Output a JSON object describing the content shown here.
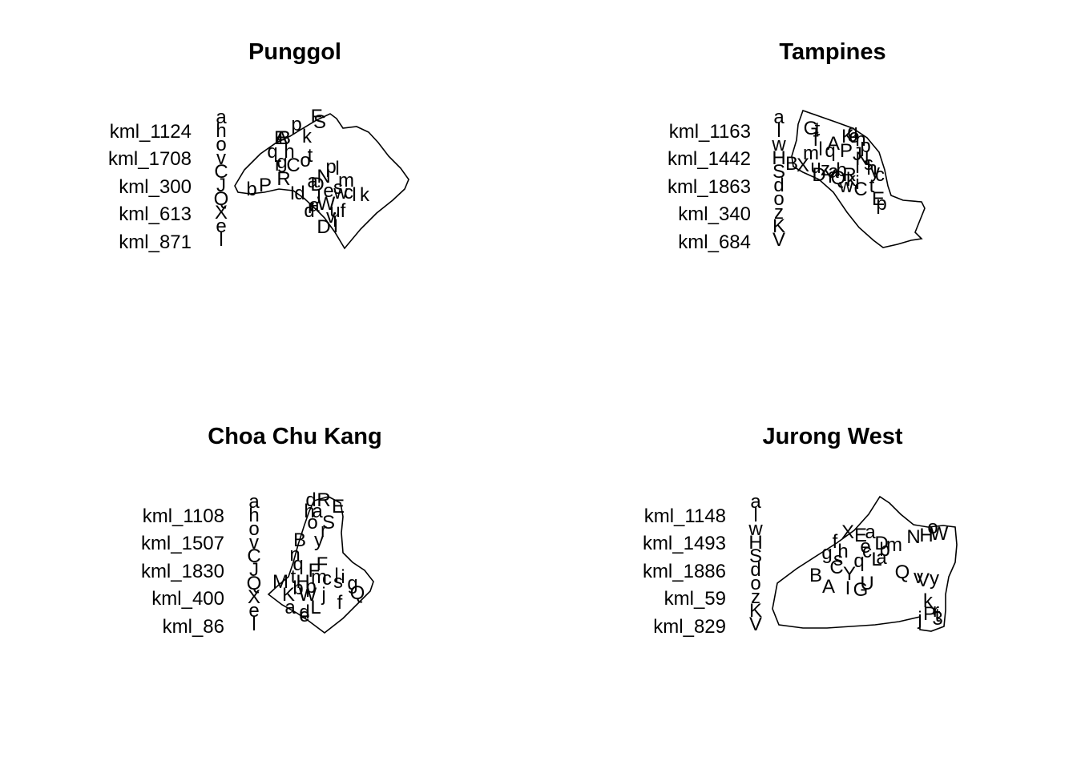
{
  "panels": [
    {
      "title": "Punggol",
      "legend_keys": [
        "kml_1124",
        "kml_1708",
        "kml_300",
        "kml_613",
        "kml_871"
      ],
      "legend_symbols": [
        "a",
        "h",
        "o",
        "v",
        "C",
        "J",
        "Q",
        "X",
        "e",
        "l"
      ],
      "point_labels": [
        "F",
        "S",
        "p",
        "k",
        "A",
        "B",
        "E",
        "q",
        "h",
        "t",
        "g",
        "r",
        "C",
        "o",
        "p",
        "l",
        "N",
        "m",
        "R",
        "a",
        "s",
        "b",
        "P",
        "I",
        "d",
        "j",
        "D",
        "e",
        "w",
        "c",
        "W",
        "a",
        "u",
        "f",
        "l",
        "k",
        "r",
        "d",
        "v",
        "i",
        "I",
        "D"
      ]
    },
    {
      "title": "Tampines",
      "legend_keys": [
        "kml_1163",
        "kml_1442",
        "kml_1863",
        "kml_340",
        "kml_684"
      ],
      "legend_symbols": [
        "a",
        "l",
        "w",
        "H",
        "S",
        "d",
        "o",
        "z",
        "K",
        "V"
      ],
      "point_labels": [
        "G",
        "t",
        "f",
        "A",
        "K",
        "e",
        "g",
        "n",
        "p",
        "B",
        "m",
        "l",
        "q",
        "P",
        "J",
        "N",
        "s",
        "y",
        "X",
        "u",
        "z",
        "a",
        "b",
        "l",
        "h",
        "c",
        "D",
        "Y",
        "Q",
        "R",
        "t",
        "C",
        "E",
        "p",
        "w",
        "i",
        "k"
      ]
    },
    {
      "title": "Choa Chu Kang",
      "legend_keys": [
        "kml_1108",
        "kml_1507",
        "kml_1830",
        "kml_400",
        "kml_86"
      ],
      "legend_symbols": [
        "a",
        "h",
        "o",
        "v",
        "C",
        "J",
        "Q",
        "X",
        "e",
        "l"
      ],
      "point_labels": [
        "d",
        "R",
        "E",
        "h",
        "a",
        "S",
        "o",
        "r",
        "y",
        "B",
        "F",
        "n",
        "l",
        "q",
        "F",
        "i",
        "s",
        "M",
        "H",
        "g",
        "Q",
        "K",
        "W",
        "a",
        "d",
        "e",
        "f",
        "L",
        "j",
        "p",
        "b",
        "m",
        "c",
        "t"
      ]
    },
    {
      "title": "Jurong West",
      "legend_keys": [
        "kml_1148",
        "kml_1493",
        "kml_1886",
        "kml_59",
        "kml_829"
      ],
      "legend_symbols": [
        "a",
        "l",
        "w",
        "H",
        "S",
        "d",
        "o",
        "z",
        "K",
        "V"
      ],
      "point_labels": [
        "X",
        "E",
        "a",
        "D",
        "m",
        "N",
        "H",
        "W",
        "o",
        "e",
        "f",
        "g",
        "Q",
        "h",
        "B",
        "b",
        "s",
        "L",
        "Y",
        "C",
        "A",
        "I",
        "U",
        "G",
        "v",
        "y",
        "V",
        "q",
        "k",
        "P",
        "j",
        "t",
        "r",
        "3",
        "a",
        "c"
      ]
    }
  ]
}
